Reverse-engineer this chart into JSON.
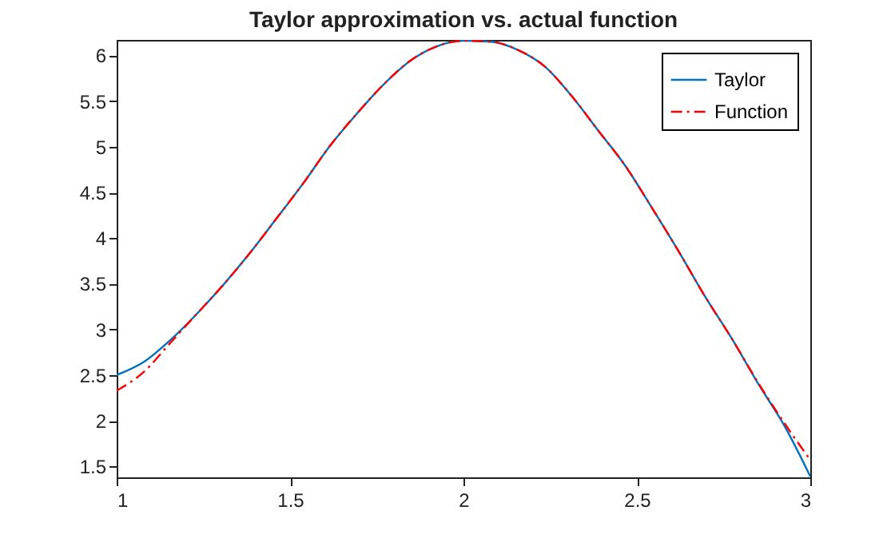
{
  "chart_data": {
    "type": "line",
    "title": "Taylor approximation vs. actual function",
    "xlim": [
      1,
      3
    ],
    "xticks": [
      1,
      1.5,
      2,
      2.5,
      3
    ],
    "ylim": [
      1.38,
      6.17
    ],
    "yticks": [
      1.5,
      2,
      2.5,
      3,
      3.5,
      4,
      4.5,
      5,
      5.5,
      6
    ],
    "grid": false,
    "legend": "top right",
    "x": [
      1,
      1.077,
      1.154,
      1.231,
      1.308,
      1.385,
      1.462,
      1.538,
      1.615,
      1.692,
      1.769,
      1.846,
      1.923,
      2.0,
      2.08,
      2.157,
      2.234,
      2.311,
      2.388,
      2.465,
      2.542,
      2.618,
      2.695,
      2.772,
      2.849,
      2.926,
      3.0
    ],
    "series": [
      {
        "name": "Taylor",
        "color": "#0072bd",
        "line_style": "solid",
        "values": [
          2.5,
          2.64,
          2.88,
          3.17,
          3.49,
          3.84,
          4.22,
          4.6,
          5.01,
          5.36,
          5.68,
          5.94,
          6.1,
          6.16,
          6.15,
          6.06,
          5.88,
          5.56,
          5.18,
          4.8,
          4.34,
          3.87,
          3.37,
          2.91,
          2.41,
          1.94,
          1.39
        ]
      },
      {
        "name": "Function",
        "color": "#ff0000",
        "line_style": "dashed",
        "values": [
          2.33,
          2.53,
          2.85,
          3.17,
          3.49,
          3.84,
          4.22,
          4.6,
          5.01,
          5.36,
          5.68,
          5.94,
          6.1,
          6.16,
          6.15,
          6.06,
          5.88,
          5.56,
          5.18,
          4.8,
          4.34,
          3.87,
          3.37,
          2.91,
          2.42,
          1.97,
          1.57
        ]
      }
    ]
  }
}
